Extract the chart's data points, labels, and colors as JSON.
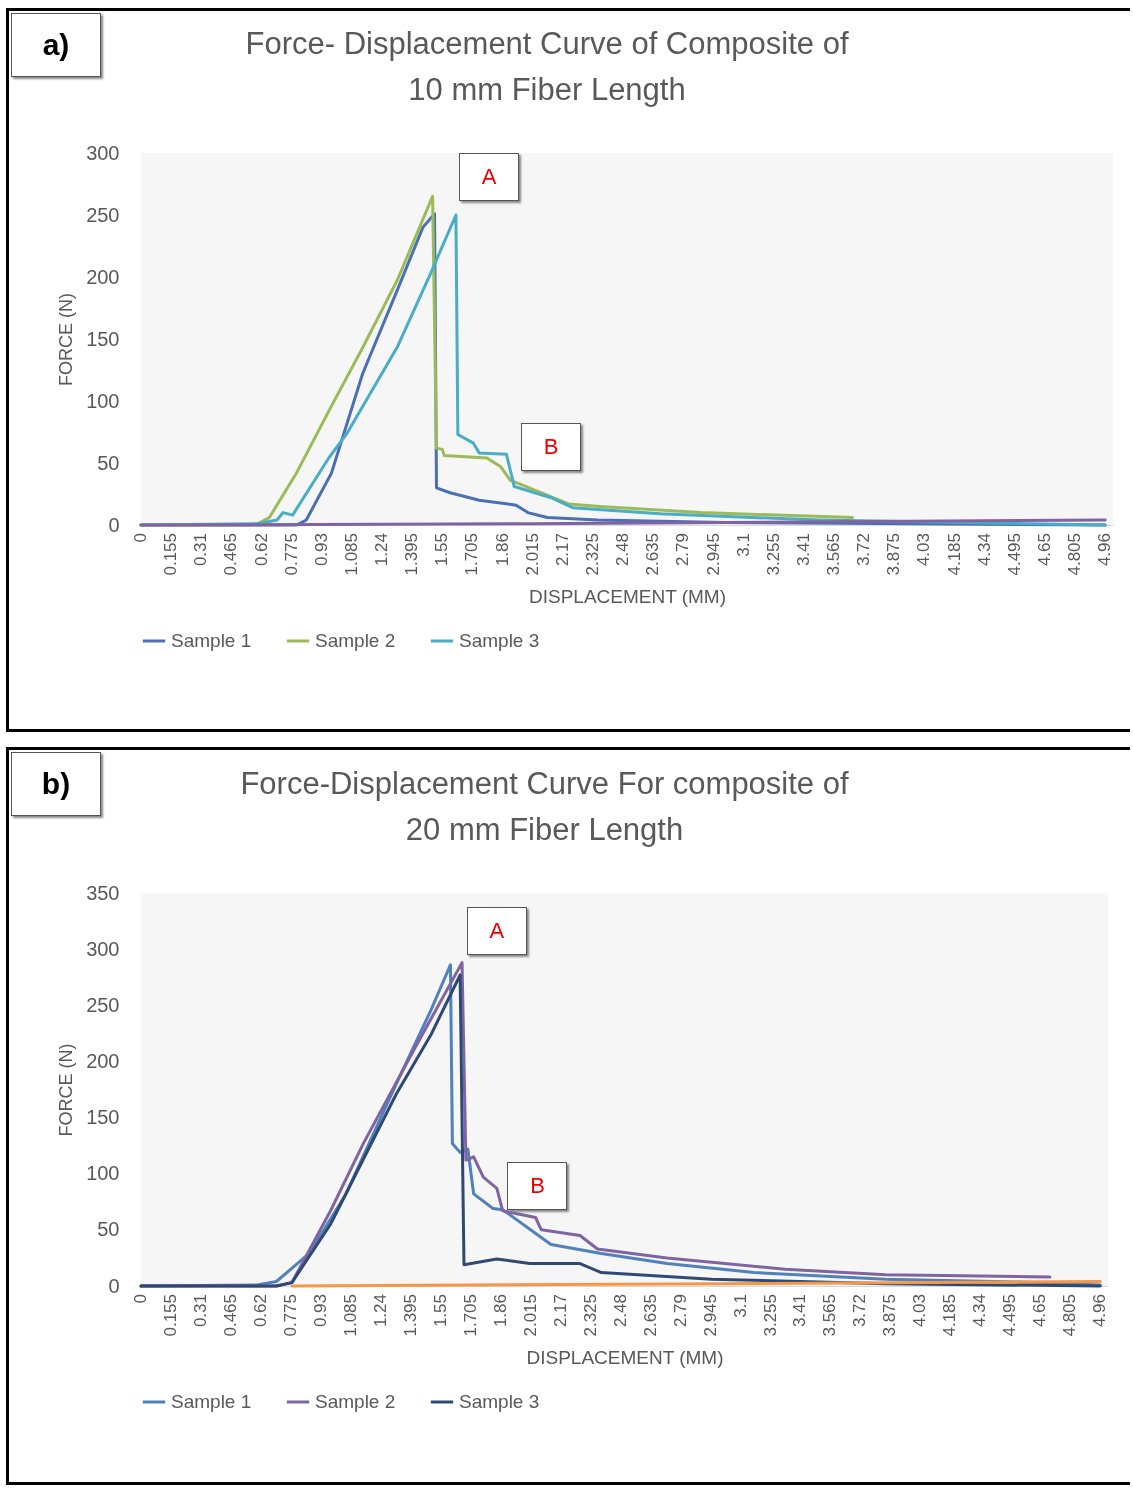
{
  "chart_data": [
    {
      "type": "line",
      "title": "Force- Displacement Curve of Composite of 10 mm Fiber Length",
      "xlabel": "DISPLACEMENT (MM)",
      "ylabel": "FORCE (N)",
      "annotations": [
        "a)",
        "A",
        "B"
      ],
      "xlim": [
        0,
        5.0
      ],
      "xticks": [
        0,
        0.155,
        0.31,
        0.465,
        0.62,
        0.775,
        0.93,
        1.085,
        1.24,
        1.395,
        1.55,
        1.705,
        1.86,
        2.015,
        2.17,
        2.325,
        2.48,
        2.635,
        2.79,
        2.945,
        3.1,
        3.255,
        3.41,
        3.565,
        3.72,
        3.875,
        4.03,
        4.185,
        4.34,
        4.495,
        4.65,
        4.805,
        4.96
      ],
      "ylim": [
        0,
        300
      ],
      "yticks": [
        0,
        50,
        100,
        150,
        200,
        250,
        300
      ],
      "legend": "bottom",
      "marker": "none",
      "line_style": "solid",
      "series": [
        {
          "name": "Sample 1",
          "color": "#4a6fb5",
          "x": [
            0,
            0.8,
            0.85,
            0.98,
            1.14,
            1.32,
            1.45,
            1.51,
            1.52,
            1.59,
            1.74,
            1.93,
            1.99,
            2.09,
            2.35,
            3.0,
            4.0,
            4.96
          ],
          "values": [
            0,
            0,
            4,
            42,
            122,
            190,
            240,
            251,
            30,
            26,
            20,
            16,
            10,
            6,
            4,
            2,
            1,
            0
          ]
        },
        {
          "name": "Sample 2",
          "color": "#9bbb59",
          "x": [
            0,
            0.55,
            0.6,
            0.66,
            0.8,
            0.97,
            1.14,
            1.32,
            1.5,
            1.52,
            1.55,
            1.56,
            1.78,
            1.85,
            1.9,
            1.95,
            2.2,
            2.36,
            2.88,
            3.66
          ],
          "values": [
            0,
            0,
            1,
            6,
            42,
            93,
            143,
            198,
            265,
            62,
            61,
            56,
            54,
            47,
            36,
            33,
            17,
            15,
            10,
            6
          ]
        },
        {
          "name": "Sample 3",
          "color": "#4bacc6",
          "x": [
            0,
            0.6,
            0.7,
            0.73,
            0.78,
            0.97,
            1.06,
            1.32,
            1.49,
            1.62,
            1.63,
            1.71,
            1.74,
            1.88,
            1.92,
            2.11,
            2.22,
            2.67,
            3.49,
            4.96
          ],
          "values": [
            0,
            1,
            4,
            10,
            8,
            55,
            74,
            144,
            203,
            250,
            73,
            66,
            58,
            57,
            31,
            22,
            14,
            9,
            4,
            0
          ]
        },
        {
          "color": "#8064a2",
          "x": [
            0,
            2.0,
            4.96
          ],
          "values": [
            0,
            1,
            4
          ]
        }
      ]
    },
    {
      "type": "line",
      "title": "Force-Displacement Curve For composite of 20 mm Fiber Length",
      "xlabel": "DISPLACEMENT (MM)",
      "ylabel": "FORCE (N)",
      "annotations": [
        "b)",
        "A",
        "B"
      ],
      "xlim": [
        0,
        5.0
      ],
      "xticks": [
        0,
        0.155,
        0.31,
        0.465,
        0.62,
        0.775,
        0.93,
        1.085,
        1.24,
        1.395,
        1.55,
        1.705,
        1.86,
        2.015,
        2.17,
        2.325,
        2.48,
        2.635,
        2.79,
        2.945,
        3.1,
        3.255,
        3.41,
        3.565,
        3.72,
        3.875,
        4.03,
        4.185,
        4.34,
        4.495,
        4.65,
        4.805,
        4.96
      ],
      "ylim": [
        0,
        350
      ],
      "yticks": [
        0,
        50,
        100,
        150,
        200,
        250,
        300,
        350
      ],
      "legend": "bottom",
      "marker": "none",
      "line_style": "solid",
      "series": [
        {
          "name": "Sample 1",
          "color": "#4f81bd",
          "x": [
            0,
            0.6,
            0.7,
            0.87,
            1.06,
            1.32,
            1.5,
            1.6,
            1.61,
            1.65,
            1.69,
            1.72,
            1.82,
            1.87,
            2.12,
            2.38,
            2.72,
            3.17,
            3.85,
            4.68,
            4.96
          ],
          "values": [
            0,
            1,
            4,
            29,
            82,
            180,
            246,
            286,
            127,
            119,
            122,
            82,
            69,
            68,
            37,
            29,
            20,
            12,
            6,
            3,
            1
          ]
        },
        {
          "name": "Sample 2",
          "color": "#8064a2",
          "x": [
            0,
            0.7,
            0.78,
            0.98,
            1.15,
            1.41,
            1.66,
            1.68,
            1.72,
            1.77,
            1.84,
            1.87,
            2.04,
            2.07,
            2.27,
            2.36,
            2.72,
            3.33,
            3.85,
            4.7
          ],
          "values": [
            0,
            0,
            3,
            67,
            127,
            210,
            288,
            112,
            115,
            97,
            87,
            67,
            61,
            50,
            45,
            33,
            25,
            15,
            10,
            8
          ]
        },
        {
          "name": "Sample 3",
          "color": "#2e4a72",
          "x": [
            0,
            0.7,
            0.78,
            0.98,
            1.32,
            1.5,
            1.65,
            1.67,
            1.84,
            2.01,
            2.27,
            2.38,
            2.95,
            3.85,
            4.96
          ],
          "values": [
            0,
            0,
            3,
            55,
            171,
            224,
            277,
            19,
            24,
            20,
            20,
            12,
            6,
            2,
            0
          ]
        },
        {
          "color": "#f79646",
          "x": [
            0.78,
            3.0,
            4.96
          ],
          "values": [
            0,
            2,
            4
          ]
        }
      ]
    }
  ]
}
